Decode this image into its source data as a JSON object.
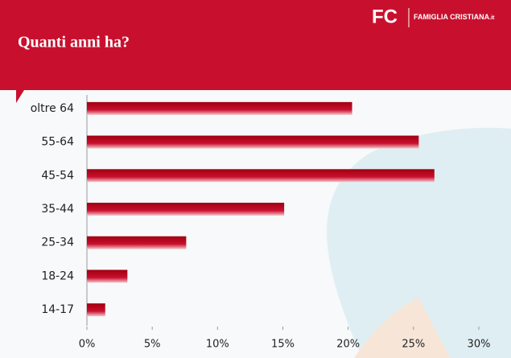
{
  "logo": {
    "mark": "FC",
    "name": "FAMIGLIA CRISTIANA",
    "suffix": ".it"
  },
  "chart_data": {
    "type": "bar",
    "orientation": "horizontal",
    "title": "Quanti anni ha?",
    "categories": [
      "oltre 64",
      "55-64",
      "45-54",
      "35-44",
      "25-34",
      "18-24",
      "14-17"
    ],
    "values": [
      20.3,
      25.4,
      26.6,
      15.1,
      7.6,
      3.1,
      1.4
    ],
    "color": "#c8102e",
    "xlim": [
      0,
      30
    ],
    "xticks": [
      {
        "value": 0,
        "label": "0%"
      },
      {
        "value": 5,
        "label": "5%"
      },
      {
        "value": 10,
        "label": "10%"
      },
      {
        "value": 15,
        "label": "15%"
      },
      {
        "value": 20,
        "label": "20%"
      },
      {
        "value": 25,
        "label": "25%"
      },
      {
        "value": 30,
        "label": "30%"
      }
    ],
    "grid": false
  }
}
